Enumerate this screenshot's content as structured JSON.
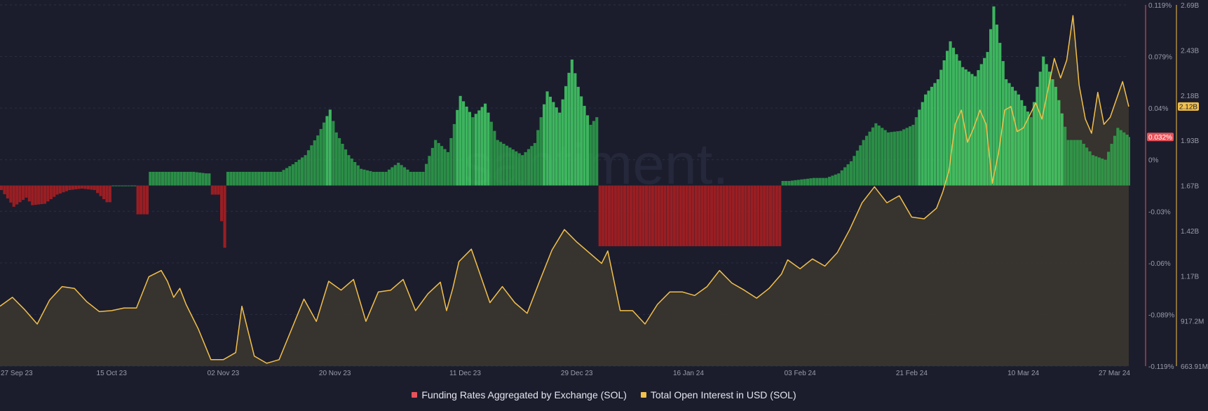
{
  "colors": {
    "background": "#1b1d2d",
    "positive_funding": "#2fae4e",
    "positive_funding_bright": "#46e06c",
    "negative_funding": "#a81f22",
    "open_interest_line": "#f3c04a",
    "open_interest_fill": "#3a352f",
    "grid": "#2b2e42",
    "tick_text": "#9a9cab",
    "funding_badge": "#e8525a",
    "oi_badge": "#f3c04a"
  },
  "watermark": "santiment.",
  "legend": [
    {
      "label": "Funding Rates Aggregated by Exchange (SOL)",
      "color": "#e8525a"
    },
    {
      "label": "Total Open Interest in USD (SOL)",
      "color": "#f3c04a"
    }
  ],
  "chart_data": {
    "type": "line",
    "x_ticks": [
      "27 Sep 23",
      "15 Oct 23",
      "02 Nov 23",
      "20 Nov 23",
      "11 Dec 23",
      "29 Dec 23",
      "16 Jan 24",
      "03 Feb 24",
      "21 Feb 24",
      "10 Mar 24",
      "27 Mar 24"
    ],
    "funding_axis": {
      "ticks": [
        "0.119%",
        "0.079%",
        "0.04%",
        "0%",
        "-0.03%",
        "-0.06%",
        "-0.089%",
        "-0.119%"
      ],
      "ylim": [
        -0.119,
        0.119
      ],
      "current_value_label": "0.032%"
    },
    "open_interest_axis": {
      "ticks": [
        "2.69B",
        "2.43B",
        "2.18B",
        "1.93B",
        "1.67B",
        "1.42B",
        "1.17B",
        "917.2M",
        "663.91M"
      ],
      "ylim": [
        663.91,
        2690
      ],
      "unit": "M USD",
      "current_value_label": "2.12B"
    },
    "grid": true,
    "legend_position": "bottom",
    "series": [
      {
        "name": "Total Open Interest in USD (SOL)",
        "style": "line-area",
        "points": [
          [
            "27 Sep 23",
            1000
          ],
          [
            "29 Sep 23",
            1050
          ],
          [
            "01 Oct 23",
            980
          ],
          [
            "03 Oct 23",
            900
          ],
          [
            "05 Oct 23",
            1035
          ],
          [
            "07 Oct 23",
            1110
          ],
          [
            "09 Oct 23",
            1100
          ],
          [
            "11 Oct 23",
            1025
          ],
          [
            "13 Oct 23",
            970
          ],
          [
            "15 Oct 23",
            975
          ],
          [
            "17 Oct 23",
            990
          ],
          [
            "19 Oct 23",
            990
          ],
          [
            "21 Oct 23",
            1165
          ],
          [
            "23 Oct 23",
            1200
          ],
          [
            "24 Oct 23",
            1140
          ],
          [
            "25 Oct 23",
            1050
          ],
          [
            "26 Oct 23",
            1100
          ],
          [
            "27 Oct 23",
            1010
          ],
          [
            "29 Oct 23",
            870
          ],
          [
            "31 Oct 23",
            700
          ],
          [
            "02 Nov 23",
            700
          ],
          [
            "04 Nov 23",
            740
          ],
          [
            "05 Nov 23",
            1000
          ],
          [
            "07 Nov 23",
            720
          ],
          [
            "09 Nov 23",
            680
          ],
          [
            "11 Nov 23",
            700
          ],
          [
            "13 Nov 23",
            870
          ],
          [
            "15 Nov 23",
            1040
          ],
          [
            "17 Nov 23",
            915
          ],
          [
            "19 Nov 23",
            1140
          ],
          [
            "21 Nov 23",
            1090
          ],
          [
            "23 Nov 23",
            1150
          ],
          [
            "25 Nov 23",
            915
          ],
          [
            "27 Nov 23",
            1080
          ],
          [
            "29 Nov 23",
            1090
          ],
          [
            "01 Dec 23",
            1150
          ],
          [
            "03 Dec 23",
            975
          ],
          [
            "05 Dec 23",
            1070
          ],
          [
            "07 Dec 23",
            1135
          ],
          [
            "08 Dec 23",
            975
          ],
          [
            "09 Dec 23",
            1100
          ],
          [
            "10 Dec 23",
            1250
          ],
          [
            "12 Dec 23",
            1320
          ],
          [
            "13 Dec 23",
            1220
          ],
          [
            "15 Dec 23",
            1020
          ],
          [
            "17 Dec 23",
            1110
          ],
          [
            "19 Dec 23",
            1020
          ],
          [
            "21 Dec 23",
            960
          ],
          [
            "23 Dec 23",
            1140
          ],
          [
            "25 Dec 23",
            1315
          ],
          [
            "27 Dec 23",
            1430
          ],
          [
            "29 Dec 23",
            1360
          ],
          [
            "31 Dec 23",
            1300
          ],
          [
            "02 Jan 24",
            1240
          ],
          [
            "03 Jan 24",
            1310
          ],
          [
            "05 Jan 24",
            975
          ],
          [
            "07 Jan 24",
            975
          ],
          [
            "09 Jan 24",
            900
          ],
          [
            "11 Jan 24",
            1010
          ],
          [
            "13 Jan 24",
            1080
          ],
          [
            "15 Jan 24",
            1080
          ],
          [
            "17 Jan 24",
            1060
          ],
          [
            "19 Jan 24",
            1110
          ],
          [
            "21 Jan 24",
            1200
          ],
          [
            "23 Jan 24",
            1130
          ],
          [
            "25 Jan 24",
            1090
          ],
          [
            "27 Jan 24",
            1045
          ],
          [
            "29 Jan 24",
            1100
          ],
          [
            "31 Jan 24",
            1180
          ],
          [
            "01 Feb 24",
            1260
          ],
          [
            "03 Feb 24",
            1210
          ],
          [
            "05 Feb 24",
            1265
          ],
          [
            "07 Feb 24",
            1225
          ],
          [
            "09 Feb 24",
            1300
          ],
          [
            "11 Feb 24",
            1430
          ],
          [
            "13 Feb 24",
            1580
          ],
          [
            "15 Feb 24",
            1670
          ],
          [
            "17 Feb 24",
            1580
          ],
          [
            "19 Feb 24",
            1620
          ],
          [
            "21 Feb 24",
            1500
          ],
          [
            "23 Feb 24",
            1490
          ],
          [
            "25 Feb 24",
            1550
          ],
          [
            "26 Feb 24",
            1640
          ],
          [
            "27 Feb 24",
            1760
          ],
          [
            "28 Feb 24",
            2020
          ],
          [
            "29 Feb 24",
            2100
          ],
          [
            "01 Mar 24",
            1920
          ],
          [
            "02 Mar 24",
            2000
          ],
          [
            "03 Mar 24",
            2100
          ],
          [
            "04 Mar 24",
            2020
          ],
          [
            "05 Mar 24",
            1690
          ],
          [
            "06 Mar 24",
            1860
          ],
          [
            "07 Mar 24",
            2100
          ],
          [
            "08 Mar 24",
            2120
          ],
          [
            "09 Mar 24",
            1980
          ],
          [
            "10 Mar 24",
            2000
          ],
          [
            "12 Mar 24",
            2140
          ],
          [
            "13 Mar 24",
            2050
          ],
          [
            "15 Mar 24",
            2390
          ],
          [
            "16 Mar 24",
            2280
          ],
          [
            "17 Mar 24",
            2380
          ],
          [
            "18 Mar 24",
            2630
          ],
          [
            "19 Mar 24",
            2240
          ],
          [
            "20 Mar 24",
            2050
          ],
          [
            "21 Mar 24",
            1970
          ],
          [
            "22 Mar 24",
            2200
          ],
          [
            "23 Mar 24",
            2020
          ],
          [
            "24 Mar 24",
            2060
          ],
          [
            "25 Mar 24",
            2160
          ],
          [
            "26 Mar 24",
            2260
          ],
          [
            "27 Mar 24",
            2120
          ]
        ]
      },
      {
        "name": "Funding Rates Aggregated by Exchange (SOL)",
        "style": "bars",
        "unit": "%",
        "points": [
          [
            "27 Sep 23",
            -0.003
          ],
          [
            "29 Sep 23",
            -0.014
          ],
          [
            "01 Oct 23",
            -0.008
          ],
          [
            "02 Oct 23",
            -0.013
          ],
          [
            "04 Oct 23",
            -0.012
          ],
          [
            "06 Oct 23",
            -0.006
          ],
          [
            "08 Oct 23",
            -0.003
          ],
          [
            "10 Oct 23",
            -0.002
          ],
          [
            "12 Oct 23",
            -0.003
          ],
          [
            "14 Oct 23",
            -0.011
          ],
          [
            "16 Oct 23",
            0.0
          ],
          [
            "18 Oct 23",
            0.0
          ],
          [
            "20 Oct 23",
            -0.019
          ],
          [
            "22 Oct 23",
            0.009
          ],
          [
            "24 Oct 23",
            0.009
          ],
          [
            "26 Oct 23",
            0.009
          ],
          [
            "28 Oct 23",
            0.009
          ],
          [
            "30 Oct 23",
            0.008
          ],
          [
            "01 Nov 23",
            -0.006
          ],
          [
            "02 Nov 23",
            -0.041
          ],
          [
            "03 Nov 23",
            0.009
          ],
          [
            "05 Nov 23",
            0.009
          ],
          [
            "07 Nov 23",
            0.009
          ],
          [
            "09 Nov 23",
            0.009
          ],
          [
            "11 Nov 23",
            0.009
          ],
          [
            "13 Nov 23",
            0.014
          ],
          [
            "15 Nov 23",
            0.02
          ],
          [
            "17 Nov 23",
            0.033
          ],
          [
            "19 Nov 23",
            0.05
          ],
          [
            "20 Nov 23",
            0.035
          ],
          [
            "22 Nov 23",
            0.02
          ],
          [
            "24 Nov 23",
            0.011
          ],
          [
            "26 Nov 23",
            0.009
          ],
          [
            "28 Nov 23",
            0.009
          ],
          [
            "30 Nov 23",
            0.015
          ],
          [
            "02 Dec 23",
            0.009
          ],
          [
            "04 Dec 23",
            0.009
          ],
          [
            "06 Dec 23",
            0.03
          ],
          [
            "08 Dec 23",
            0.022
          ],
          [
            "10 Dec 23",
            0.059
          ],
          [
            "12 Dec 23",
            0.045
          ],
          [
            "14 Dec 23",
            0.054
          ],
          [
            "16 Dec 23",
            0.03
          ],
          [
            "18 Dec 23",
            0.025
          ],
          [
            "20 Dec 23",
            0.02
          ],
          [
            "22 Dec 23",
            0.028
          ],
          [
            "24 Dec 23",
            0.062
          ],
          [
            "26 Dec 23",
            0.048
          ],
          [
            "28 Dec 23",
            0.083
          ],
          [
            "29 Dec 23",
            0.065
          ],
          [
            "31 Dec 23",
            0.04
          ],
          [
            "01 Jan 24",
            0.045
          ],
          [
            "02 Jan 24",
            -0.04
          ],
          [
            "06 Jan 24",
            -0.04
          ],
          [
            "10 Jan 24",
            -0.04
          ],
          [
            "14 Jan 24",
            -0.04
          ],
          [
            "18 Jan 24",
            -0.04
          ],
          [
            "22 Jan 24",
            -0.04
          ],
          [
            "26 Jan 24",
            -0.04
          ],
          [
            "30 Jan 24",
            -0.04
          ],
          [
            "01 Feb 24",
            0.003
          ],
          [
            "03 Feb 24",
            0.004
          ],
          [
            "05 Feb 24",
            0.005
          ],
          [
            "07 Feb 24",
            0.005
          ],
          [
            "09 Feb 24",
            0.008
          ],
          [
            "11 Feb 24",
            0.016
          ],
          [
            "13 Feb 24",
            0.03
          ],
          [
            "15 Feb 24",
            0.041
          ],
          [
            "17 Feb 24",
            0.035
          ],
          [
            "19 Feb 24",
            0.036
          ],
          [
            "21 Feb 24",
            0.04
          ],
          [
            "23 Feb 24",
            0.06
          ],
          [
            "25 Feb 24",
            0.07
          ],
          [
            "27 Feb 24",
            0.095
          ],
          [
            "29 Feb 24",
            0.078
          ],
          [
            "02 Mar 24",
            0.072
          ],
          [
            "04 Mar 24",
            0.088
          ],
          [
            "05 Mar 24",
            0.118
          ],
          [
            "07 Mar 24",
            0.07
          ],
          [
            "09 Mar 24",
            0.06
          ],
          [
            "11 Mar 24",
            0.045
          ],
          [
            "13 Mar 24",
            0.085
          ],
          [
            "15 Mar 24",
            0.065
          ],
          [
            "17 Mar 24",
            0.03
          ],
          [
            "19 Mar 24",
            0.03
          ],
          [
            "21 Mar 24",
            0.02
          ],
          [
            "23 Mar 24",
            0.017
          ],
          [
            "25 Mar 24",
            0.038
          ],
          [
            "27 Mar 24",
            0.032
          ]
        ]
      }
    ]
  }
}
